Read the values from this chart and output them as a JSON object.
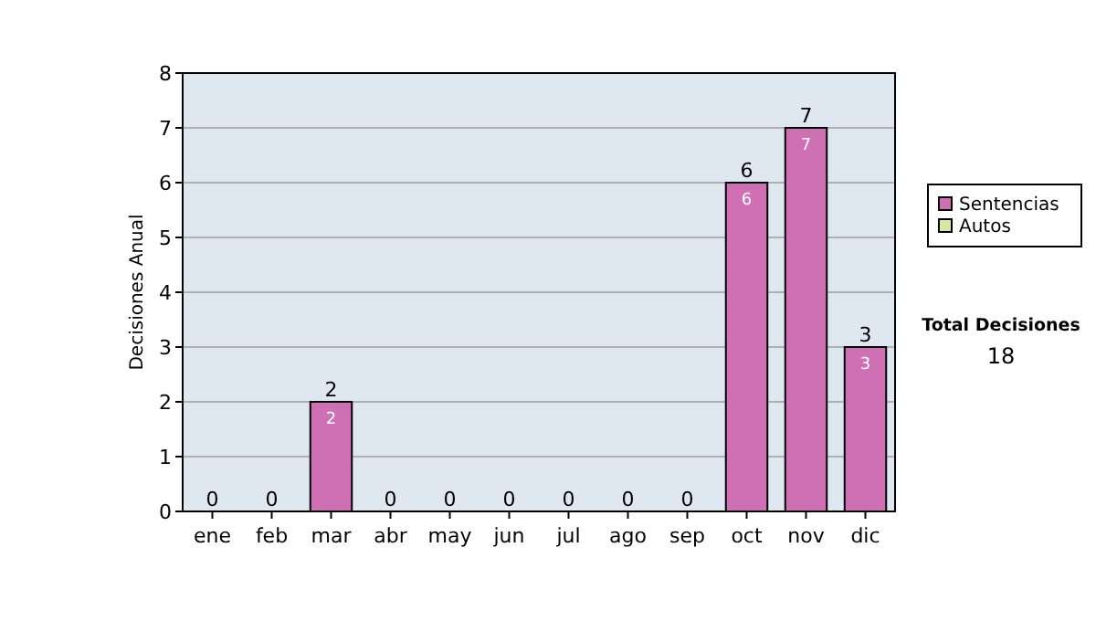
{
  "chart_data": {
    "type": "bar",
    "ylabel": "Decisiones Anual",
    "categories": [
      "ene",
      "feb",
      "mar",
      "abr",
      "may",
      "jun",
      "jul",
      "ago",
      "sep",
      "oct",
      "nov",
      "dic"
    ],
    "series": [
      {
        "name": "Sentencias",
        "color": "#d070b4",
        "values": [
          0,
          0,
          2,
          0,
          0,
          0,
          0,
          0,
          0,
          6,
          7,
          3
        ],
        "value_labels": [
          null,
          null,
          "2",
          null,
          null,
          null,
          null,
          null,
          null,
          "6",
          "7",
          "3"
        ]
      },
      {
        "name": "Autos",
        "color": "#d8e8a0",
        "values": [
          0,
          0,
          0,
          0,
          0,
          0,
          0,
          0,
          0,
          0,
          0,
          0
        ]
      }
    ],
    "stacked": true,
    "totals": [
      "0",
      "0",
      "2",
      "0",
      "0",
      "0",
      "0",
      "0",
      "0",
      "6",
      "7",
      "3"
    ],
    "ylim": [
      0,
      8
    ],
    "yticks": [
      0,
      1,
      2,
      3,
      4,
      5,
      6,
      7,
      8
    ],
    "grid": "y",
    "legend": "right",
    "annotations": [
      "Total Decisiones",
      "18"
    ]
  }
}
